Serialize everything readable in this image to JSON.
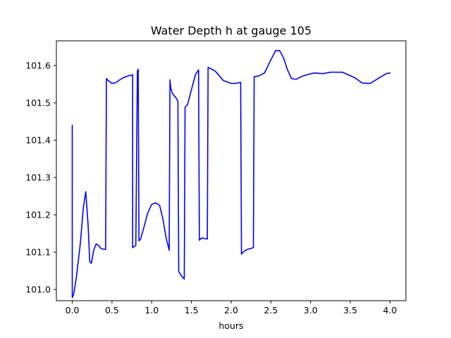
{
  "chart_data": {
    "type": "line",
    "title": "Water Depth h at gauge 105",
    "xlabel": "hours",
    "ylabel": "",
    "xlim": [
      -0.2,
      4.2
    ],
    "ylim": [
      100.97,
      101.666
    ],
    "xticks": [
      0.0,
      0.5,
      1.0,
      1.5,
      2.0,
      2.5,
      3.0,
      3.5,
      4.0
    ],
    "xtick_labels": [
      "0.0",
      "0.5",
      "1.0",
      "1.5",
      "2.0",
      "2.5",
      "3.0",
      "3.5",
      "4.0"
    ],
    "yticks": [
      101.0,
      101.1,
      101.2,
      101.3,
      101.4,
      101.5,
      101.6
    ],
    "ytick_labels": [
      "101.0",
      "101.1",
      "101.2",
      "101.3",
      "101.4",
      "101.5",
      "101.6"
    ],
    "grid": false,
    "legend": "none",
    "series": [
      {
        "color": "#0000ff",
        "x": [
          0.0,
          0.0,
          0.02,
          0.05,
          0.1,
          0.14,
          0.17,
          0.2,
          0.22,
          0.24,
          0.27,
          0.3,
          0.33,
          0.36,
          0.39,
          0.42,
          0.43,
          0.45,
          0.5,
          0.55,
          0.6,
          0.65,
          0.7,
          0.76,
          0.76,
          0.8,
          0.82,
          0.83,
          0.84,
          0.86,
          0.9,
          0.95,
          1.0,
          1.05,
          1.1,
          1.14,
          1.18,
          1.22,
          1.23,
          1.24,
          1.26,
          1.3,
          1.33,
          1.34,
          1.38,
          1.41,
          1.42,
          1.45,
          1.5,
          1.55,
          1.59,
          1.6,
          1.63,
          1.7,
          1.71,
          1.8,
          1.9,
          2.0,
          2.06,
          2.12,
          2.13,
          2.16,
          2.2,
          2.25,
          2.28,
          2.29,
          2.35,
          2.42,
          2.5,
          2.56,
          2.61,
          2.66,
          2.71,
          2.76,
          2.82,
          2.88,
          2.95,
          3.05,
          3.15,
          3.25,
          3.4,
          3.55,
          3.65,
          3.75,
          3.85,
          3.95,
          4.0
        ],
        "y": [
          101.44,
          100.978,
          100.99,
          101.03,
          101.12,
          101.22,
          101.262,
          101.17,
          101.075,
          101.07,
          101.105,
          101.122,
          101.118,
          101.11,
          101.108,
          101.107,
          101.565,
          101.56,
          101.552,
          101.554,
          101.562,
          101.568,
          101.572,
          101.575,
          101.112,
          101.118,
          101.585,
          101.59,
          101.13,
          101.135,
          101.165,
          101.205,
          101.228,
          101.232,
          101.225,
          101.19,
          101.14,
          101.105,
          101.562,
          101.54,
          101.525,
          101.515,
          101.505,
          101.048,
          101.035,
          101.028,
          101.488,
          101.495,
          101.535,
          101.575,
          101.588,
          101.132,
          101.138,
          101.135,
          101.595,
          101.585,
          101.56,
          101.552,
          101.552,
          101.555,
          101.095,
          101.102,
          101.107,
          101.11,
          101.112,
          101.57,
          101.572,
          101.58,
          101.615,
          101.64,
          101.64,
          101.62,
          101.588,
          101.565,
          101.563,
          101.57,
          101.575,
          101.58,
          101.578,
          101.582,
          101.582,
          101.568,
          101.553,
          101.552,
          101.565,
          101.578,
          101.58
        ]
      }
    ]
  }
}
